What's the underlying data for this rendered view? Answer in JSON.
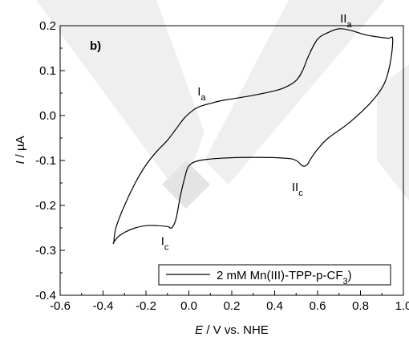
{
  "chart_data": {
    "type": "line",
    "panel_label": "b)",
    "xlabel": {
      "symbol": "E",
      "rest": " / V vs. NHE"
    },
    "ylabel": {
      "symbol": "I",
      "rest": " / µA"
    },
    "xlim": [
      -0.6,
      1.0
    ],
    "ylim": [
      -0.4,
      0.2
    ],
    "xticks": [
      "-0.6",
      "-0.4",
      "-0.2",
      "0.0",
      "0.2",
      "0.4",
      "0.6",
      "0.8",
      "1.0"
    ],
    "xtick_values": [
      -0.6,
      -0.4,
      -0.2,
      0.0,
      0.2,
      0.4,
      0.6,
      0.8,
      1.0
    ],
    "yticks": [
      "0.2",
      "0.1",
      "0.0",
      "-0.1",
      "-0.2",
      "-0.3",
      "-0.4"
    ],
    "ytick_values": [
      0.2,
      0.1,
      0.0,
      -0.1,
      -0.2,
      -0.3,
      -0.4
    ],
    "grid": false,
    "legend_position": "bottom-right",
    "series": [
      {
        "name": "2 mM Mn(III)-TPP-p-CF3",
        "legend": {
          "main": "2 mM Mn(III)-TPP-p-CF",
          "sub": "3",
          "close": ")"
        },
        "color": "#000000",
        "x": [
          -0.35,
          -0.34,
          -0.3,
          -0.25,
          -0.2,
          -0.15,
          -0.1,
          -0.06,
          -0.02,
          0.02,
          0.05,
          0.1,
          0.15,
          0.2,
          0.3,
          0.4,
          0.45,
          0.5,
          0.53,
          0.56,
          0.6,
          0.65,
          0.7,
          0.75,
          0.82,
          0.88,
          0.93,
          0.95,
          0.94,
          0.91,
          0.85,
          0.75,
          0.65,
          0.6,
          0.57,
          0.55,
          0.53,
          0.5,
          0.45,
          0.3,
          0.15,
          0.05,
          0.0,
          -0.02,
          -0.04,
          -0.06,
          -0.08,
          -0.1,
          -0.15,
          -0.2,
          -0.25,
          -0.3,
          -0.33,
          -0.35
        ],
        "y": [
          -0.282,
          -0.25,
          -0.2,
          -0.15,
          -0.11,
          -0.08,
          -0.055,
          -0.03,
          -0.005,
          0.012,
          0.02,
          0.027,
          0.033,
          0.037,
          0.045,
          0.055,
          0.063,
          0.078,
          0.1,
          0.135,
          0.17,
          0.185,
          0.193,
          0.19,
          0.18,
          0.175,
          0.172,
          0.171,
          0.12,
          0.07,
          0.03,
          -0.015,
          -0.05,
          -0.075,
          -0.095,
          -0.11,
          -0.112,
          -0.1,
          -0.095,
          -0.093,
          -0.095,
          -0.1,
          -0.112,
          -0.14,
          -0.18,
          -0.23,
          -0.25,
          -0.247,
          -0.245,
          -0.245,
          -0.25,
          -0.26,
          -0.27,
          -0.282
        ]
      }
    ],
    "annotations": [
      {
        "main": "II",
        "sub": "a",
        "x": 0.705,
        "y": 0.207
      },
      {
        "main": "I",
        "sub": "a",
        "x": 0.04,
        "y": 0.045
      },
      {
        "main": "II",
        "sub": "c",
        "x": 0.48,
        "y": -0.168
      },
      {
        "main": "I",
        "sub": "c",
        "x": -0.13,
        "y": -0.288
      }
    ]
  }
}
